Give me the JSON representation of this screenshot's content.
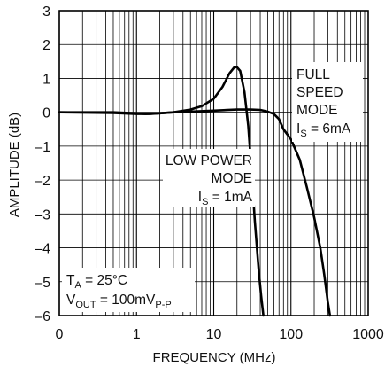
{
  "chart_data": {
    "type": "line",
    "xlabel": "FREQUENCY (MHz)",
    "ylabel": "AMPLITUDE (dB)",
    "xscale": "log",
    "xlim": [
      0.1,
      1000
    ],
    "ylim": [
      -6,
      3
    ],
    "grid": true,
    "x_tick_labels": [
      "0",
      "1",
      "10",
      "100",
      "1000"
    ],
    "y_tick_labels": [
      "3",
      "2",
      "1",
      "0",
      "–1",
      "–2",
      "–3",
      "–4",
      "–5",
      "–6"
    ],
    "series": [
      {
        "label_lines": [
          "FULL",
          "SPEED",
          "MODE"
        ],
        "current_label": {
          "main": "I",
          "sub": "S",
          "rest": " = 6mA"
        },
        "points": [
          [
            0.1,
            0
          ],
          [
            0.5,
            -0.02
          ],
          [
            1,
            -0.05
          ],
          [
            1.5,
            -0.05
          ],
          [
            2,
            -0.03
          ],
          [
            3,
            0.0
          ],
          [
            5,
            0.02
          ],
          [
            10,
            0.05
          ],
          [
            20,
            0.08
          ],
          [
            30,
            0.08
          ],
          [
            40,
            0.07
          ],
          [
            50,
            0.02
          ],
          [
            60,
            -0.05
          ],
          [
            70,
            -0.2
          ],
          [
            80,
            -0.5
          ],
          [
            100,
            -0.8
          ],
          [
            130,
            -1.4
          ],
          [
            160,
            -2.2
          ],
          [
            200,
            -3.1
          ],
          [
            240,
            -4.0
          ],
          [
            270,
            -4.8
          ],
          [
            300,
            -5.6
          ],
          [
            320,
            -6.0
          ]
        ]
      },
      {
        "label_lines": [
          "LOW POWER",
          "MODE"
        ],
        "current_label": {
          "main": "I",
          "sub": "S",
          "rest": " = 1mA"
        },
        "points": [
          [
            0.1,
            0
          ],
          [
            0.5,
            0.0
          ],
          [
            1,
            -0.03
          ],
          [
            1.3,
            -0.05
          ],
          [
            2,
            -0.03
          ],
          [
            3,
            0.0
          ],
          [
            5,
            0.08
          ],
          [
            7,
            0.18
          ],
          [
            10,
            0.4
          ],
          [
            13,
            0.75
          ],
          [
            16,
            1.15
          ],
          [
            18.5,
            1.33
          ],
          [
            20,
            1.33
          ],
          [
            22,
            1.22
          ],
          [
            25,
            0.6
          ],
          [
            28,
            -0.4
          ],
          [
            31,
            -1.8
          ],
          [
            34,
            -3.2
          ],
          [
            38,
            -4.6
          ],
          [
            41,
            -5.4
          ],
          [
            44,
            -6.0
          ]
        ]
      }
    ],
    "conditions": [
      {
        "main": "T",
        "sub": "A",
        "rest": " = 25°C"
      },
      {
        "main": "V",
        "sub": "OUT",
        "rest": " = 100mV",
        "sub2": "P-P"
      }
    ]
  }
}
